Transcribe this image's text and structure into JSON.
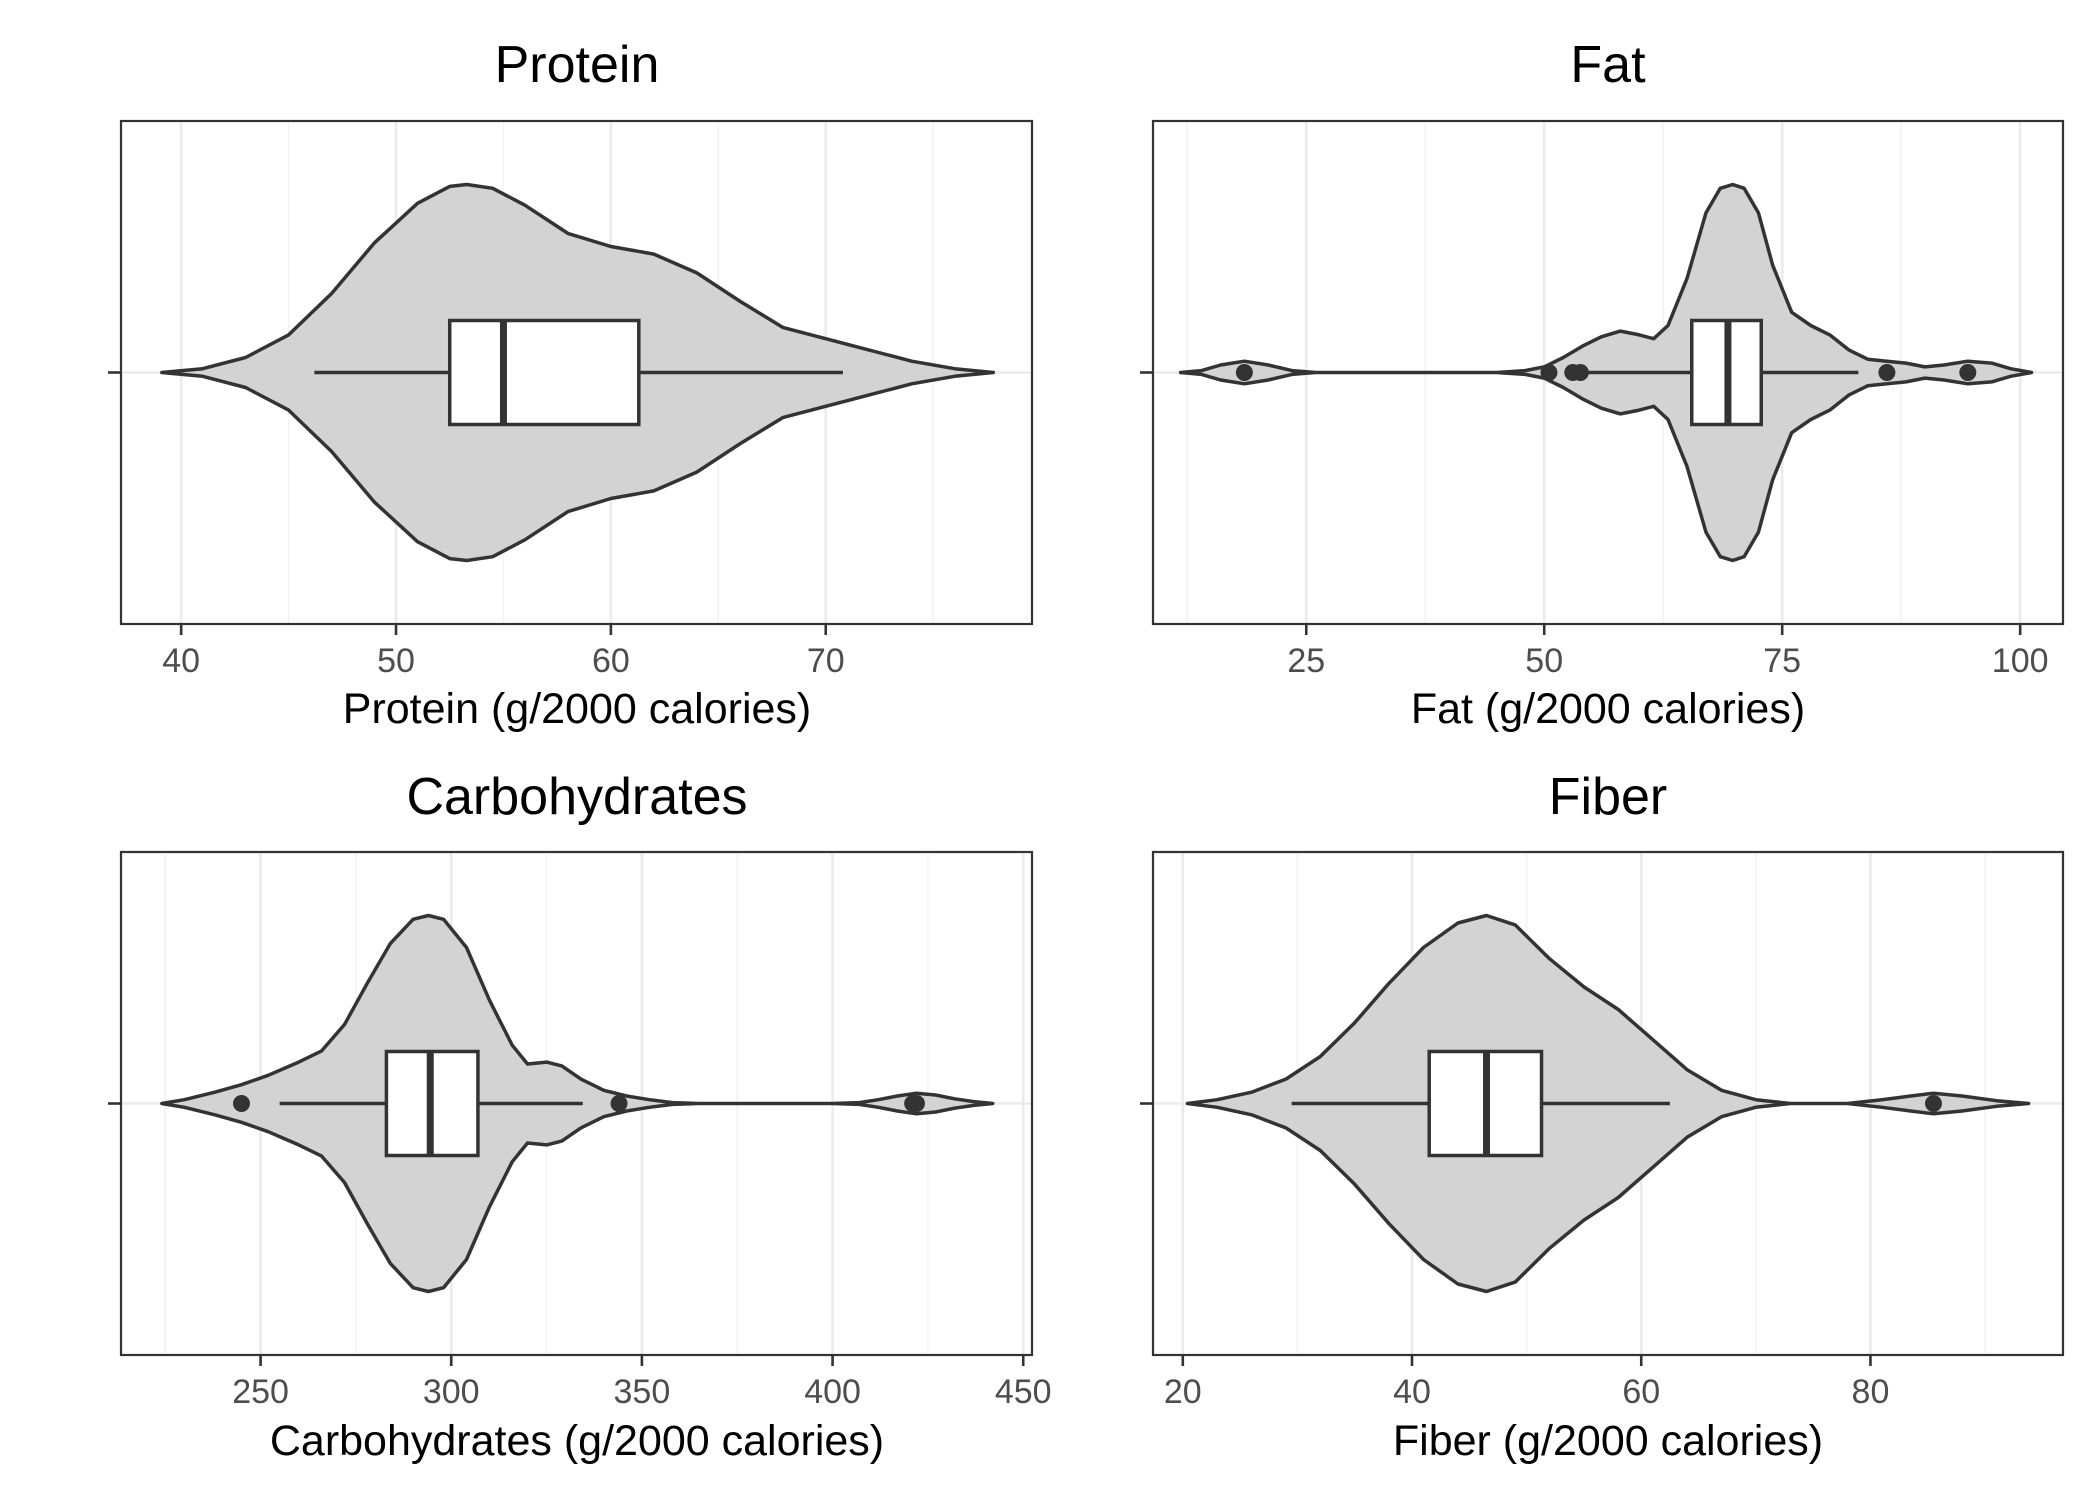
{
  "chart_data": [
    {
      "type": "violin",
      "title": "Protein",
      "xlabel": "Protein (g/2000 calories)",
      "ylabel": "",
      "xlim": [
        37.2,
        79.6
      ],
      "xticks": [
        40,
        50,
        60,
        70
      ],
      "tick_labels": [
        "40",
        "50",
        "60",
        "70"
      ],
      "grid": true,
      "density_range": [
        39.1,
        77.8
      ],
      "density": [
        [
          39.1,
          0.0
        ],
        [
          41.0,
          0.02
        ],
        [
          43.0,
          0.08
        ],
        [
          45.0,
          0.2
        ],
        [
          47.0,
          0.42
        ],
        [
          49.0,
          0.69
        ],
        [
          51.0,
          0.9
        ],
        [
          52.5,
          0.99
        ],
        [
          53.3,
          1.0
        ],
        [
          54.5,
          0.98
        ],
        [
          56.0,
          0.89
        ],
        [
          58.0,
          0.74
        ],
        [
          60.0,
          0.67
        ],
        [
          62.0,
          0.63
        ],
        [
          64.0,
          0.53
        ],
        [
          66.0,
          0.38
        ],
        [
          68.0,
          0.24
        ],
        [
          70.0,
          0.18
        ],
        [
          72.0,
          0.12
        ],
        [
          74.0,
          0.06
        ],
        [
          76.0,
          0.02
        ],
        [
          77.8,
          0.0
        ]
      ],
      "box": {
        "whisker_low": 46.2,
        "q1": 52.5,
        "median": 55.0,
        "q3": 61.3,
        "whisker_high": 70.8
      },
      "outliers": []
    },
    {
      "type": "violin",
      "title": "Fat",
      "xlabel": "Fat (g/2000 calories)",
      "ylabel": "",
      "xlim": [
        8.9,
        104.5
      ],
      "xticks": [
        25,
        50,
        75,
        100
      ],
      "tick_labels": [
        "25",
        "50",
        "75",
        "100"
      ],
      "grid": true,
      "density_range": [
        11.8,
        101.2
      ],
      "density": [
        [
          11.8,
          0.0
        ],
        [
          14.0,
          0.01
        ],
        [
          16.0,
          0.04
        ],
        [
          18.5,
          0.06
        ],
        [
          21.0,
          0.04
        ],
        [
          23.5,
          0.01
        ],
        [
          26.0,
          0.0
        ],
        [
          45.0,
          0.0
        ],
        [
          48.0,
          0.01
        ],
        [
          50.0,
          0.03
        ],
        [
          52.0,
          0.08
        ],
        [
          54.0,
          0.14
        ],
        [
          56.0,
          0.19
        ],
        [
          58.0,
          0.22
        ],
        [
          60.0,
          0.2
        ],
        [
          61.5,
          0.18
        ],
        [
          63.0,
          0.25
        ],
        [
          65.0,
          0.5
        ],
        [
          67.0,
          0.85
        ],
        [
          68.5,
          0.98
        ],
        [
          69.8,
          1.0
        ],
        [
          71.0,
          0.98
        ],
        [
          72.5,
          0.85
        ],
        [
          74.0,
          0.57
        ],
        [
          76.0,
          0.32
        ],
        [
          78.0,
          0.25
        ],
        [
          80.0,
          0.2
        ],
        [
          82.0,
          0.12
        ],
        [
          84.0,
          0.07
        ],
        [
          86.0,
          0.06
        ],
        [
          88.0,
          0.05
        ],
        [
          90.0,
          0.03
        ],
        [
          92.0,
          0.04
        ],
        [
          94.5,
          0.06
        ],
        [
          97.0,
          0.05
        ],
        [
          99.0,
          0.02
        ],
        [
          101.2,
          0.0
        ]
      ],
      "box": {
        "whisker_low": 54.0,
        "q1": 65.5,
        "median": 69.3,
        "q3": 72.8,
        "whisker_high": 83.0
      },
      "outliers": [
        18.5,
        50.5,
        53.0,
        53.8,
        86.0,
        94.5
      ]
    },
    {
      "type": "violin",
      "title": "Carbohydrates",
      "xlabel": "Carbohydrates (g/2000 calories)",
      "ylabel": "",
      "xlim": [
        213.4,
        452.3
      ],
      "xticks": [
        250,
        300,
        350,
        400,
        450
      ],
      "tick_labels": [
        "250",
        "300",
        "350",
        "400",
        "450"
      ],
      "grid": true,
      "density_range": [
        224.1,
        442.0
      ],
      "density": [
        [
          224.1,
          0.0
        ],
        [
          230.0,
          0.02
        ],
        [
          238.0,
          0.06
        ],
        [
          245.0,
          0.1
        ],
        [
          252.0,
          0.15
        ],
        [
          260.0,
          0.22
        ],
        [
          266.0,
          0.28
        ],
        [
          272.0,
          0.42
        ],
        [
          278.0,
          0.64
        ],
        [
          284.0,
          0.85
        ],
        [
          290.0,
          0.98
        ],
        [
          294.0,
          1.0
        ],
        [
          298.0,
          0.98
        ],
        [
          304.0,
          0.83
        ],
        [
          310.0,
          0.55
        ],
        [
          316.0,
          0.31
        ],
        [
          320.0,
          0.21
        ],
        [
          325.0,
          0.22
        ],
        [
          329.0,
          0.2
        ],
        [
          334.0,
          0.13
        ],
        [
          340.0,
          0.07
        ],
        [
          346.0,
          0.04
        ],
        [
          352.0,
          0.02
        ],
        [
          358.0,
          0.005
        ],
        [
          365.0,
          0.0
        ],
        [
          400.0,
          0.0
        ],
        [
          407.0,
          0.005
        ],
        [
          412.0,
          0.02
        ],
        [
          417.0,
          0.04
        ],
        [
          422.0,
          0.055
        ],
        [
          427.0,
          0.045
        ],
        [
          432.0,
          0.025
        ],
        [
          437.0,
          0.01
        ],
        [
          442.0,
          0.0
        ]
      ],
      "box": {
        "whisker_low": 255.0,
        "q1": 283.0,
        "median": 294.5,
        "q3": 307.0,
        "whisker_high": 334.5
      },
      "outliers": [
        245.0,
        344.0,
        421.0,
        422.0
      ]
    },
    {
      "type": "violin",
      "title": "Fiber",
      "xlabel": "Fiber (g/2000 calories)",
      "ylabel": "",
      "xlim": [
        17.4,
        96.8
      ],
      "xticks": [
        20,
        40,
        60,
        80
      ],
      "tick_labels": [
        "20",
        "40",
        "60",
        "80"
      ],
      "grid": true,
      "density_range": [
        20.4,
        93.8
      ],
      "density": [
        [
          20.4,
          0.0
        ],
        [
          23.0,
          0.02
        ],
        [
          26.0,
          0.06
        ],
        [
          29.0,
          0.13
        ],
        [
          32.0,
          0.25
        ],
        [
          35.0,
          0.43
        ],
        [
          38.0,
          0.64
        ],
        [
          41.0,
          0.83
        ],
        [
          44.0,
          0.96
        ],
        [
          46.5,
          1.0
        ],
        [
          49.0,
          0.95
        ],
        [
          52.0,
          0.77
        ],
        [
          55.0,
          0.62
        ],
        [
          58.0,
          0.5
        ],
        [
          61.0,
          0.34
        ],
        [
          64.0,
          0.18
        ],
        [
          67.0,
          0.07
        ],
        [
          70.0,
          0.02
        ],
        [
          73.0,
          0.0
        ],
        [
          78.0,
          0.0
        ],
        [
          81.0,
          0.02
        ],
        [
          83.5,
          0.04
        ],
        [
          85.5,
          0.055
        ],
        [
          88.0,
          0.04
        ],
        [
          91.0,
          0.015
        ],
        [
          93.8,
          0.0
        ]
      ],
      "box": {
        "whisker_low": 29.5,
        "q1": 41.5,
        "median": 46.5,
        "q3": 51.3,
        "whisker_high": 62.5
      },
      "outliers": [
        85.5
      ]
    }
  ]
}
